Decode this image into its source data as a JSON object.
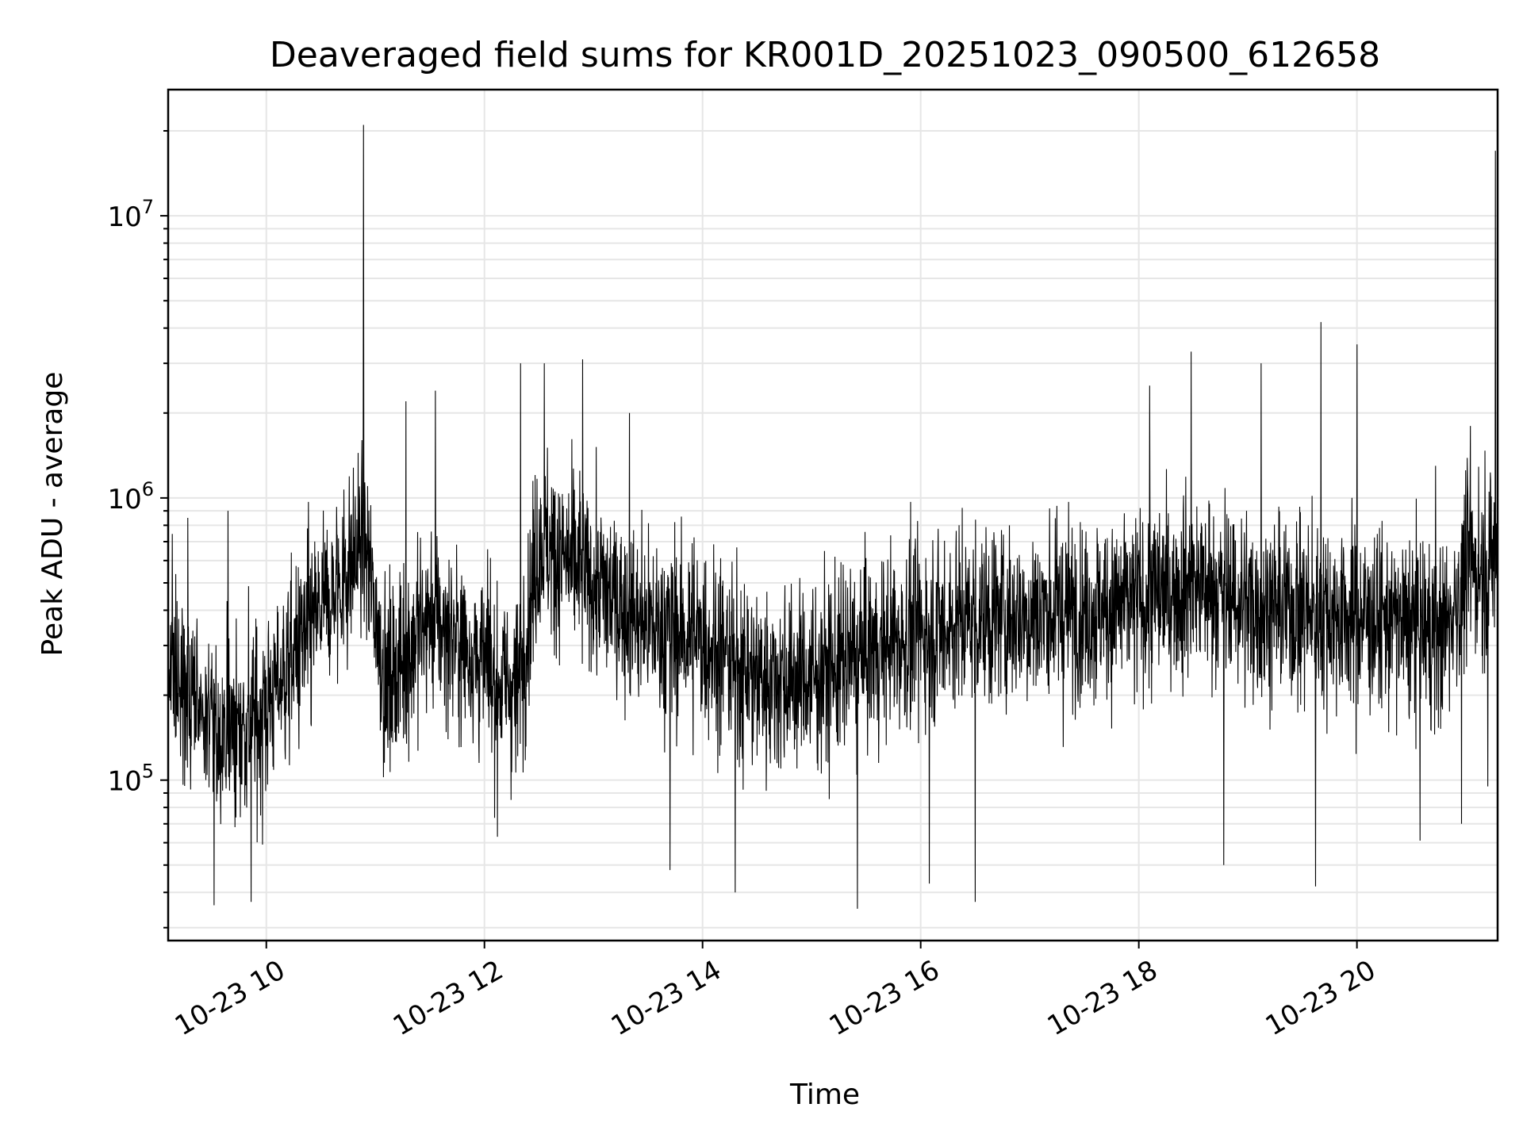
{
  "chart_data": {
    "type": "line",
    "title": "Deaveraged field sums for KR001D_20251023_090500_612658",
    "xlabel": "Time",
    "ylabel": "Peak ADU - average",
    "yscale": "log",
    "ylim": [
      27000,
      28000000
    ],
    "xlim_hours": [
      9.1,
      21.29
    ],
    "grid": true,
    "line_color": "#000000",
    "x_ticks": [
      {
        "hour": 10,
        "label": "10-23 10"
      },
      {
        "hour": 12,
        "label": "10-23 12"
      },
      {
        "hour": 14,
        "label": "10-23 14"
      },
      {
        "hour": 16,
        "label": "10-23 16"
      },
      {
        "hour": 18,
        "label": "10-23 18"
      },
      {
        "hour": 20,
        "label": "10-23 20"
      }
    ],
    "y_ticks": [
      {
        "value": 100000,
        "base": "10",
        "exp": "5"
      },
      {
        "value": 1000000,
        "base": "10",
        "exp": "6"
      },
      {
        "value": 10000000,
        "base": "10",
        "exp": "7"
      }
    ],
    "baseline_profile": [
      [
        9.1,
        250000
      ],
      [
        9.5,
        150000
      ],
      [
        9.9,
        160000
      ],
      [
        10.2,
        250000
      ],
      [
        10.6,
        450000
      ],
      [
        10.9,
        700000
      ],
      [
        11.1,
        220000
      ],
      [
        11.5,
        380000
      ],
      [
        11.8,
        300000
      ],
      [
        12.3,
        200000
      ],
      [
        12.5,
        700000
      ],
      [
        13.0,
        500000
      ],
      [
        13.5,
        350000
      ],
      [
        14.0,
        320000
      ],
      [
        14.5,
        230000
      ],
      [
        15.0,
        230000
      ],
      [
        15.5,
        280000
      ],
      [
        16.0,
        340000
      ],
      [
        16.5,
        380000
      ],
      [
        17.0,
        390000
      ],
      [
        17.5,
        400000
      ],
      [
        18.0,
        420000
      ],
      [
        18.5,
        500000
      ],
      [
        19.0,
        420000
      ],
      [
        19.5,
        400000
      ],
      [
        20.0,
        380000
      ],
      [
        20.5,
        350000
      ],
      [
        20.8,
        330000
      ],
      [
        21.0,
        550000
      ],
      [
        21.29,
        600000
      ]
    ],
    "peaks": [
      {
        "hour": 9.1,
        "value": 600000
      },
      {
        "hour": 9.28,
        "value": 850000
      },
      {
        "hour": 9.52,
        "value": 36000
      },
      {
        "hour": 9.65,
        "value": 900000
      },
      {
        "hour": 9.86,
        "value": 37000
      },
      {
        "hour": 10.89,
        "value": 21000000
      },
      {
        "hour": 11.28,
        "value": 2200000
      },
      {
        "hour": 11.55,
        "value": 2400000
      },
      {
        "hour": 12.12,
        "value": 63000
      },
      {
        "hour": 12.33,
        "value": 3000000
      },
      {
        "hour": 12.55,
        "value": 3000000
      },
      {
        "hour": 12.9,
        "value": 3100000
      },
      {
        "hour": 13.33,
        "value": 2000000
      },
      {
        "hour": 13.7,
        "value": 48000
      },
      {
        "hour": 14.3,
        "value": 40000
      },
      {
        "hour": 15.42,
        "value": 35000
      },
      {
        "hour": 16.08,
        "value": 43000
      },
      {
        "hour": 16.5,
        "value": 37000
      },
      {
        "hour": 18.1,
        "value": 2500000
      },
      {
        "hour": 18.48,
        "value": 3300000
      },
      {
        "hour": 18.78,
        "value": 50000
      },
      {
        "hour": 19.12,
        "value": 3000000
      },
      {
        "hour": 19.62,
        "value": 42000
      },
      {
        "hour": 19.67,
        "value": 4200000
      },
      {
        "hour": 20.0,
        "value": 3500000
      },
      {
        "hour": 20.58,
        "value": 61000
      },
      {
        "hour": 20.72,
        "value": 1300000
      },
      {
        "hour": 20.96,
        "value": 70000
      },
      {
        "hour": 21.04,
        "value": 1800000
      },
      {
        "hour": 21.2,
        "value": 95000
      },
      {
        "hour": 21.27,
        "value": 17000000
      }
    ]
  }
}
